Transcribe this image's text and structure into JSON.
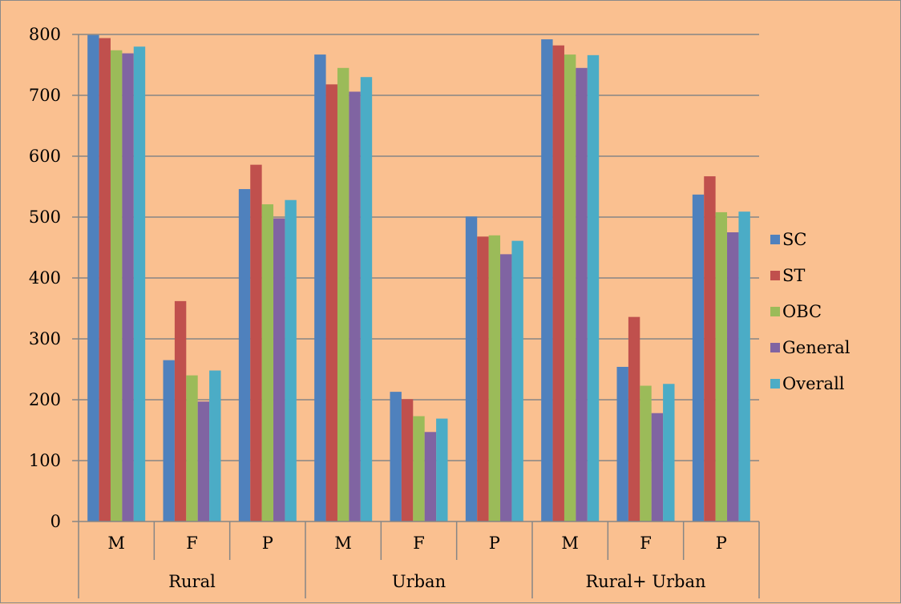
{
  "chart_data": {
    "type": "bar",
    "title": "",
    "xlabel": "",
    "ylabel": "",
    "ylim": [
      0,
      800
    ],
    "yticks": [
      0,
      100,
      200,
      300,
      400,
      500,
      600,
      700,
      800
    ],
    "grid": true,
    "legend_position": "right",
    "groups": [
      {
        "label": "Rural",
        "categories": [
          "M",
          "F",
          "P"
        ]
      },
      {
        "label": "Urban",
        "categories": [
          "M",
          "F",
          "P"
        ]
      },
      {
        "label": "Rural+ Urban",
        "categories": [
          "M",
          "F",
          "P"
        ]
      }
    ],
    "series": [
      {
        "name": "SC",
        "color": "#4f81bd",
        "values": [
          799,
          265,
          546,
          767,
          213,
          501,
          792,
          254,
          537
        ]
      },
      {
        "name": "ST",
        "color": "#c0504d",
        "values": [
          794,
          362,
          586,
          718,
          201,
          468,
          782,
          336,
          567
        ]
      },
      {
        "name": "OBC",
        "color": "#9bbb59",
        "values": [
          774,
          240,
          521,
          745,
          173,
          470,
          767,
          223,
          508
        ]
      },
      {
        "name": "General",
        "color": "#8064a2",
        "values": [
          769,
          197,
          498,
          706,
          147,
          439,
          745,
          178,
          475
        ]
      },
      {
        "name": "Overall",
        "color": "#4bacc6",
        "values": [
          780,
          248,
          528,
          730,
          169,
          461,
          766,
          226,
          509
        ]
      }
    ]
  }
}
